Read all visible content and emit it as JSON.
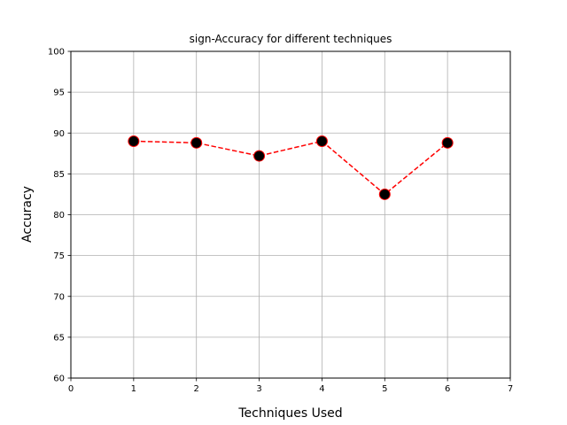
{
  "chart_data": {
    "type": "line",
    "title": "sign-Accuracy for different techniques",
    "xlabel": "Techniques Used",
    "ylabel": "Accuracy",
    "xlim": [
      0,
      7
    ],
    "ylim": [
      60,
      100
    ],
    "xticks": [
      0,
      1,
      2,
      3,
      4,
      5,
      6,
      7
    ],
    "yticks": [
      60,
      65,
      70,
      75,
      80,
      85,
      90,
      95,
      100
    ],
    "grid": true,
    "series": [
      {
        "x": [
          1,
          2,
          3,
          4,
          5,
          6
        ],
        "y": [
          89.0,
          88.8,
          87.2,
          89.0,
          82.5,
          88.8
        ],
        "line_color": "#ff0000",
        "line_style": "dashed",
        "marker": "circle",
        "marker_face_color": "#000000",
        "marker_edge_color": "#ff0000"
      }
    ]
  }
}
